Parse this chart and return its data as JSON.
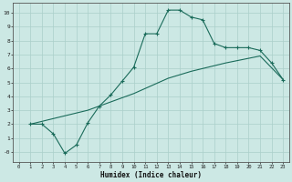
{
  "xlabel": "Humidex (Indice chaleur)",
  "bg_color": "#cce8e4",
  "line_color": "#1a6b5a",
  "grid_color": "#aacfca",
  "line1_x": [
    1,
    2,
    3,
    4,
    5,
    6,
    7,
    8,
    9,
    10,
    11,
    12,
    13,
    14,
    15,
    16,
    17,
    18,
    19,
    20,
    21,
    22,
    23
  ],
  "line1_y": [
    2,
    2,
    1.3,
    -0.1,
    0.5,
    2.1,
    3.3,
    4.1,
    5.1,
    6.1,
    8.5,
    8.5,
    10.2,
    10.2,
    9.7,
    9.5,
    7.8,
    7.5,
    7.5,
    7.5,
    7.3,
    6.4,
    5.2
  ],
  "line2_x": [
    1,
    6,
    10,
    13,
    15,
    18,
    21,
    23
  ],
  "line2_y": [
    2,
    3,
    4.2,
    5.3,
    5.8,
    6.4,
    6.9,
    5.2
  ],
  "xlim": [
    -0.5,
    23.5
  ],
  "ylim": [
    -0.7,
    10.7
  ],
  "xticks": [
    0,
    1,
    2,
    3,
    4,
    5,
    6,
    7,
    8,
    9,
    10,
    11,
    12,
    13,
    14,
    15,
    16,
    17,
    18,
    19,
    20,
    21,
    22,
    23
  ],
  "yticks": [
    0,
    1,
    2,
    3,
    4,
    5,
    6,
    7,
    8,
    9,
    10
  ],
  "ytick_labels": [
    "-0",
    "1",
    "2",
    "3",
    "4",
    "5",
    "6",
    "7",
    "8",
    "9",
    "10"
  ]
}
